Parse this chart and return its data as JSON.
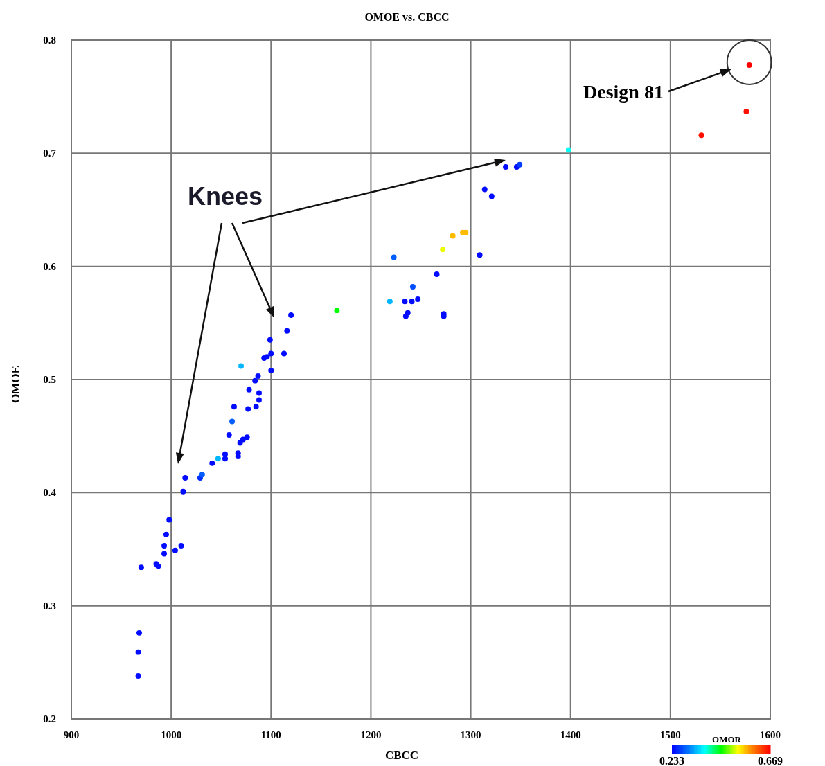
{
  "chart_data": {
    "type": "scatter",
    "title": "OMOE vs. CBCC",
    "xlabel": "CBCC",
    "ylabel": "OMOE",
    "clabel": "OMOR",
    "xlim": [
      900,
      1600
    ],
    "xticks": [
      900,
      1000,
      1100,
      1200,
      1300,
      1400,
      1500,
      1600
    ],
    "ylim": [
      0.2,
      0.8
    ],
    "yticks": [
      0.2,
      0.3,
      0.4,
      0.5,
      0.6,
      0.7,
      0.8
    ],
    "clim": [
      0.233,
      0.669
    ],
    "cticks": [
      0.233,
      0.669
    ],
    "grid": true,
    "marker": "circle",
    "annotations": [
      "Knees",
      "Design 81"
    ],
    "x": [
      967,
      967,
      968,
      970,
      985,
      987,
      993,
      993,
      995,
      998,
      1004,
      1010,
      1012,
      1014,
      1029,
      1031,
      1041,
      1047,
      1054,
      1054,
      1067,
      1067,
      1069,
      1072,
      1076,
      1058,
      1061,
      1063,
      1077,
      1085,
      1088,
      1088,
      1078,
      1084,
      1087,
      1070,
      1093,
      1096,
      1100,
      1100,
      1113,
      1099,
      1116,
      1120,
      1166,
      1223,
      1219,
      1234,
      1241,
      1235,
      1237,
      1247,
      1242,
      1266,
      1273,
      1273,
      1272,
      1282,
      1292,
      1295,
      1309,
      1314,
      1321,
      1335,
      1346,
      1349,
      1398,
      1531,
      1576,
      1579
    ],
    "values": [
      0.238,
      0.259,
      0.276,
      0.334,
      0.337,
      0.335,
      0.346,
      0.353,
      0.363,
      0.376,
      0.349,
      0.353,
      0.401,
      0.413,
      0.413,
      0.416,
      0.426,
      0.43,
      0.43,
      0.434,
      0.432,
      0.435,
      0.444,
      0.447,
      0.449,
      0.451,
      0.463,
      0.476,
      0.474,
      0.476,
      0.482,
      0.488,
      0.491,
      0.499,
      0.503,
      0.512,
      0.519,
      0.52,
      0.508,
      0.523,
      0.523,
      0.535,
      0.543,
      0.557,
      0.561,
      0.608,
      0.569,
      0.569,
      0.569,
      0.556,
      0.559,
      0.571,
      0.582,
      0.593,
      0.556,
      0.558,
      0.615,
      0.627,
      0.63,
      0.63,
      0.61,
      0.668,
      0.662,
      0.688,
      0.688,
      0.69,
      0.703,
      0.716,
      0.737,
      0.778
    ],
    "cvalues": [
      0.24,
      0.24,
      0.24,
      0.24,
      0.24,
      0.24,
      0.24,
      0.24,
      0.24,
      0.24,
      0.24,
      0.24,
      0.24,
      0.24,
      0.26,
      0.29,
      0.24,
      0.34,
      0.24,
      0.24,
      0.24,
      0.24,
      0.24,
      0.24,
      0.24,
      0.24,
      0.29,
      0.24,
      0.24,
      0.24,
      0.24,
      0.24,
      0.24,
      0.24,
      0.24,
      0.34,
      0.24,
      0.24,
      0.24,
      0.24,
      0.24,
      0.24,
      0.24,
      0.24,
      0.45,
      0.29,
      0.34,
      0.24,
      0.24,
      0.24,
      0.24,
      0.24,
      0.28,
      0.24,
      0.24,
      0.24,
      0.52,
      0.56,
      0.56,
      0.56,
      0.24,
      0.24,
      0.24,
      0.24,
      0.24,
      0.27,
      0.38,
      0.66,
      0.66,
      0.669
    ]
  }
}
